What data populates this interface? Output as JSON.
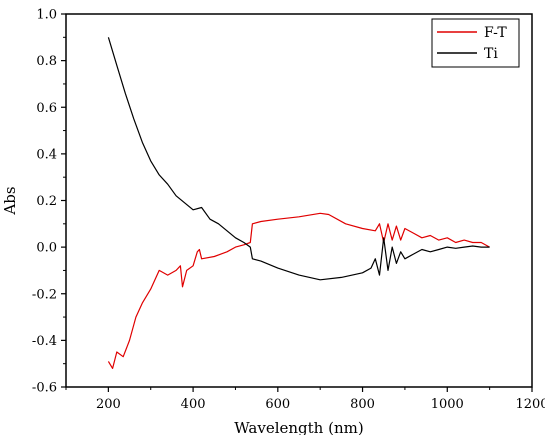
{
  "chart_data": {
    "type": "line",
    "title": "",
    "xlabel": "Wavelength (nm)",
    "ylabel": "Abs",
    "xlim": [
      100,
      1200
    ],
    "ylim": [
      -0.6,
      1.0
    ],
    "x_ticks": [
      200,
      400,
      600,
      800,
      1000,
      1200
    ],
    "x_tick_labels": [
      "200",
      "400",
      "600",
      "800",
      "1000",
      "1200"
    ],
    "y_ticks": [
      -0.6,
      -0.4,
      -0.2,
      0.0,
      0.2,
      0.4,
      0.6,
      0.8,
      1.0
    ],
    "y_tick_labels": [
      "-0.6",
      "-0.4",
      "-0.2",
      "0.0",
      "0.2",
      "0.4",
      "0.6",
      "0.8",
      "1.0"
    ],
    "grid": false,
    "legend_position": "top-right",
    "series": [
      {
        "name": "F-T",
        "color": "#e00000",
        "x": [
          200,
          210,
          220,
          235,
          250,
          265,
          280,
          300,
          320,
          340,
          360,
          370,
          375,
          385,
          400,
          410,
          415,
          420,
          450,
          480,
          500,
          520,
          535,
          540,
          560,
          600,
          650,
          700,
          720,
          760,
          800,
          830,
          840,
          850,
          860,
          870,
          880,
          890,
          900,
          920,
          940,
          960,
          980,
          1000,
          1020,
          1040,
          1060,
          1080,
          1100
        ],
        "y": [
          -0.49,
          -0.52,
          -0.45,
          -0.47,
          -0.4,
          -0.3,
          -0.24,
          -0.18,
          -0.1,
          -0.12,
          -0.1,
          -0.08,
          -0.17,
          -0.1,
          -0.08,
          -0.02,
          -0.01,
          -0.05,
          -0.04,
          -0.02,
          0.0,
          0.01,
          0.02,
          0.1,
          0.11,
          0.12,
          0.13,
          0.145,
          0.14,
          0.1,
          0.08,
          0.07,
          0.1,
          0.02,
          0.1,
          0.03,
          0.09,
          0.03,
          0.08,
          0.06,
          0.04,
          0.05,
          0.03,
          0.04,
          0.02,
          0.03,
          0.02,
          0.02,
          0.0
        ]
      },
      {
        "name": "Ti",
        "color": "#000000",
        "x": [
          200,
          220,
          240,
          260,
          280,
          300,
          320,
          340,
          360,
          380,
          400,
          420,
          440,
          460,
          480,
          500,
          520,
          535,
          540,
          560,
          600,
          650,
          700,
          750,
          800,
          820,
          830,
          840,
          850,
          860,
          870,
          880,
          890,
          900,
          920,
          940,
          960,
          980,
          1000,
          1020,
          1040,
          1060,
          1080,
          1100
        ],
        "y": [
          0.9,
          0.78,
          0.66,
          0.55,
          0.45,
          0.37,
          0.31,
          0.27,
          0.22,
          0.19,
          0.16,
          0.17,
          0.12,
          0.1,
          0.07,
          0.04,
          0.02,
          0.0,
          -0.05,
          -0.06,
          -0.09,
          -0.12,
          -0.14,
          -0.13,
          -0.11,
          -0.09,
          -0.05,
          -0.12,
          0.04,
          -0.1,
          0.0,
          -0.07,
          -0.02,
          -0.05,
          -0.03,
          -0.01,
          -0.02,
          -0.01,
          0.0,
          -0.005,
          0.0,
          0.005,
          0.0,
          0.0
        ]
      }
    ]
  }
}
